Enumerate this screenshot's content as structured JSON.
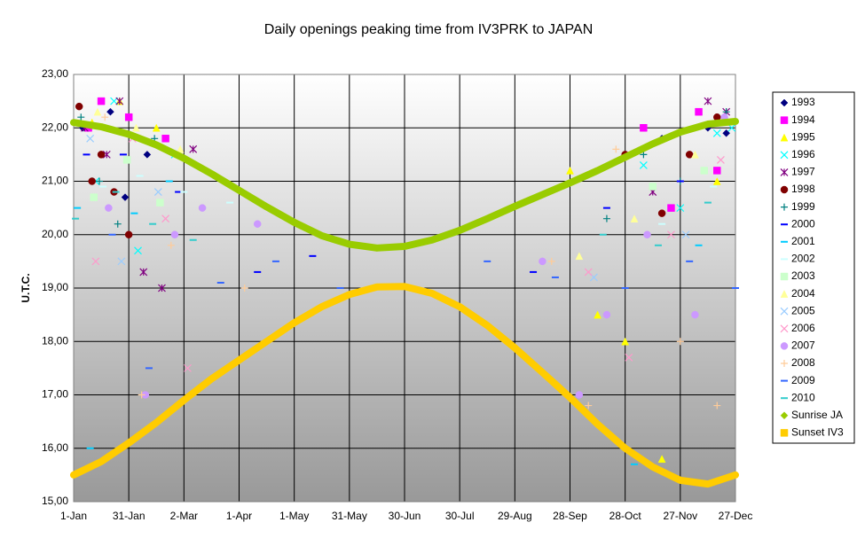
{
  "chart_data": {
    "type": "scatter",
    "title": "Daily openings peaking time from IV3PRK to JAPAN",
    "y_label": "U.T.C.",
    "xlim": [
      0,
      360
    ],
    "xticks": [
      {
        "value": 0,
        "label": "1-Jan"
      },
      {
        "value": 30,
        "label": "31-Jan"
      },
      {
        "value": 60,
        "label": "2-Mar"
      },
      {
        "value": 90,
        "label": "1-Apr"
      },
      {
        "value": 120,
        "label": "1-May"
      },
      {
        "value": 150,
        "label": "31-May"
      },
      {
        "value": 180,
        "label": "30-Jun"
      },
      {
        "value": 210,
        "label": "30-Jul"
      },
      {
        "value": 240,
        "label": "29-Aug"
      },
      {
        "value": 270,
        "label": "28-Sep"
      },
      {
        "value": 300,
        "label": "28-Oct"
      },
      {
        "value": 330,
        "label": "27-Nov"
      },
      {
        "value": 360,
        "label": "27-Dec"
      }
    ],
    "ylim": [
      15,
      23
    ],
    "yticks": [
      {
        "value": 15,
        "label": "15,00"
      },
      {
        "value": 16,
        "label": "16,00"
      },
      {
        "value": 17,
        "label": "17,00"
      },
      {
        "value": 18,
        "label": "18,00"
      },
      {
        "value": 19,
        "label": "19,00"
      },
      {
        "value": 20,
        "label": "20,00"
      },
      {
        "value": 21,
        "label": "21,00"
      },
      {
        "value": 22,
        "label": "22,00"
      },
      {
        "value": 23,
        "label": "23,00"
      }
    ],
    "grid": true,
    "legend": "right",
    "series": [
      {
        "name": "1993",
        "color": "#000080",
        "marker": "diamond",
        "x": [
          5,
          20,
          28,
          40,
          300,
          320,
          345,
          355
        ],
        "values": [
          22.0,
          22.3,
          20.7,
          21.5,
          21.5,
          21.8,
          22.0,
          21.9
        ]
      },
      {
        "name": "1994",
        "color": "#ff00ff",
        "marker": "square",
        "x": [
          8,
          15,
          30,
          50,
          310,
          325,
          340,
          350
        ],
        "values": [
          22.0,
          22.5,
          22.2,
          21.8,
          22.0,
          20.5,
          22.3,
          21.2
        ]
      },
      {
        "name": "1995",
        "color": "#ffff00",
        "marker": "triangle",
        "x": [
          10,
          25,
          45,
          270,
          285,
          300,
          320,
          350
        ],
        "values": [
          22.1,
          22.5,
          22.0,
          21.2,
          18.5,
          18.0,
          15.8,
          21.0
        ]
      },
      {
        "name": "1996",
        "color": "#00ffff",
        "marker": "x",
        "x": [
          12,
          22,
          35,
          55,
          310,
          330,
          350,
          358
        ],
        "values": [
          21.0,
          22.5,
          19.7,
          21.5,
          21.3,
          20.5,
          21.9,
          22.0
        ]
      },
      {
        "name": "1997",
        "color": "#800080",
        "marker": "asterisk",
        "x": [
          6,
          18,
          25,
          38,
          48,
          65,
          315,
          345,
          355
        ],
        "values": [
          22.0,
          21.5,
          22.5,
          19.3,
          19.0,
          21.6,
          20.8,
          22.5,
          22.3
        ]
      },
      {
        "name": "1998",
        "color": "#800000",
        "marker": "circle",
        "x": [
          3,
          10,
          15,
          22,
          30,
          300,
          320,
          335,
          350
        ],
        "values": [
          22.4,
          21.0,
          21.5,
          20.8,
          20.0,
          21.5,
          20.4,
          21.5,
          22.2
        ]
      },
      {
        "name": "1999",
        "color": "#008080",
        "marker": "plus",
        "x": [
          4,
          14,
          24,
          44,
          290,
          310,
          330,
          355
        ],
        "values": [
          22.2,
          21.0,
          20.2,
          21.8,
          20.3,
          21.5,
          21.0,
          22.3
        ]
      },
      {
        "name": "2000",
        "color": "#0000ff",
        "marker": "dash",
        "x": [
          7,
          27,
          57,
          100,
          130,
          250,
          290,
          330
        ],
        "values": [
          21.5,
          21.5,
          20.8,
          19.3,
          19.6,
          19.3,
          20.5,
          21.0
        ]
      },
      {
        "name": "2001",
        "color": "#00ccff",
        "marker": "dash",
        "x": [
          2,
          9,
          33,
          52,
          70,
          305,
          340
        ],
        "values": [
          20.5,
          16.0,
          20.4,
          21.0,
          20.5,
          15.7,
          19.8
        ]
      },
      {
        "name": "2002",
        "color": "#ccffff",
        "marker": "dash",
        "x": [
          16,
          36,
          60,
          85,
          320,
          348
        ],
        "values": [
          20.9,
          21.1,
          20.8,
          20.6,
          20.2,
          20.9
        ]
      },
      {
        "name": "2003",
        "color": "#ccffcc",
        "marker": "square",
        "x": [
          11,
          29,
          47,
          315,
          343
        ],
        "values": [
          20.7,
          21.4,
          20.6,
          20.9,
          21.2
        ]
      },
      {
        "name": "2004",
        "color": "#ffff99",
        "marker": "triangle",
        "x": [
          13,
          34,
          58,
          275,
          305,
          338
        ],
        "values": [
          22.3,
          22.0,
          21.6,
          19.6,
          20.3,
          21.5
        ]
      },
      {
        "name": "2005",
        "color": "#99ccff",
        "marker": "x",
        "x": [
          9,
          26,
          46,
          283,
          333
        ],
        "values": [
          21.8,
          19.5,
          20.8,
          19.2,
          20.0
        ]
      },
      {
        "name": "2006",
        "color": "#ff99cc",
        "marker": "x",
        "x": [
          12,
          32,
          50,
          62,
          280,
          302,
          325,
          352
        ],
        "values": [
          19.5,
          21.8,
          20.3,
          17.5,
          19.3,
          17.7,
          20.0,
          21.4
        ]
      },
      {
        "name": "2007",
        "color": "#cc99ff",
        "marker": "circle",
        "x": [
          19,
          39,
          55,
          70,
          100,
          255,
          275,
          290,
          312,
          338,
          354
        ],
        "values": [
          20.5,
          17.0,
          20.0,
          20.5,
          20.2,
          19.5,
          17.0,
          18.5,
          20.0,
          18.5,
          22.2
        ]
      },
      {
        "name": "2008",
        "color": "#ffcc99",
        "marker": "plus",
        "x": [
          17,
          37,
          53,
          75,
          93,
          260,
          280,
          295,
          330,
          350
        ],
        "values": [
          22.2,
          17.0,
          19.8,
          17.3,
          19.0,
          19.5,
          16.8,
          21.6,
          18.0,
          16.8
        ]
      },
      {
        "name": "2009",
        "color": "#3366ff",
        "marker": "dash",
        "x": [
          21,
          41,
          80,
          110,
          145,
          225,
          262,
          300,
          335,
          360
        ],
        "values": [
          20.0,
          17.5,
          19.1,
          19.5,
          19.0,
          19.5,
          19.2,
          19.0,
          19.5,
          19.0
        ]
      },
      {
        "name": "2010",
        "color": "#33cccc",
        "marker": "dash",
        "x": [
          1,
          23,
          43,
          65,
          288,
          318,
          345
        ],
        "values": [
          20.3,
          20.8,
          20.2,
          19.9,
          20.0,
          19.8,
          20.6
        ]
      },
      {
        "name": "Sunrise JA",
        "color": "#99cc00",
        "marker": "diamond",
        "style": "line",
        "x": [
          0,
          15,
          30,
          45,
          60,
          75,
          90,
          105,
          120,
          135,
          150,
          165,
          180,
          195,
          210,
          225,
          240,
          255,
          270,
          285,
          300,
          315,
          330,
          345,
          360
        ],
        "values": [
          22.1,
          22.02,
          21.88,
          21.68,
          21.43,
          21.14,
          20.83,
          20.52,
          20.23,
          19.98,
          19.82,
          19.75,
          19.78,
          19.9,
          20.08,
          20.3,
          20.53,
          20.75,
          20.97,
          21.2,
          21.45,
          21.7,
          21.92,
          22.07,
          22.12
        ]
      },
      {
        "name": "Sunset IV3",
        "color": "#ffcc00",
        "marker": "square",
        "style": "line",
        "x": [
          0,
          15,
          30,
          45,
          60,
          75,
          90,
          105,
          120,
          135,
          150,
          165,
          180,
          195,
          210,
          225,
          240,
          255,
          270,
          285,
          300,
          315,
          330,
          345,
          360
        ],
        "values": [
          15.5,
          15.75,
          16.1,
          16.48,
          16.9,
          17.3,
          17.65,
          18.0,
          18.35,
          18.65,
          18.88,
          19.02,
          19.03,
          18.9,
          18.65,
          18.3,
          17.88,
          17.42,
          16.95,
          16.45,
          16.0,
          15.65,
          15.4,
          15.33,
          15.5
        ]
      }
    ]
  }
}
